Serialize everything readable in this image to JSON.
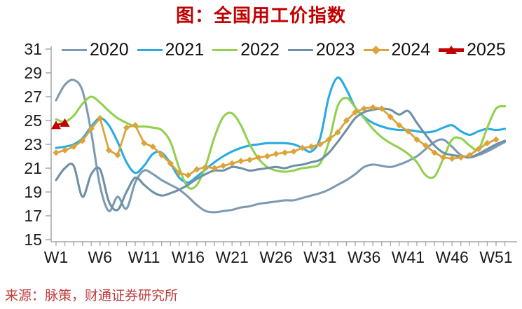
{
  "title": "图：全国用工价指数",
  "source": "来源：脉策，财通证券研究所",
  "style": {
    "title_color": "#C00000",
    "source_color": "#BE3C3C",
    "axis_color": "#A6A6A6",
    "tick_label_color": "#1a1a1a"
  },
  "chart_data": {
    "type": "line",
    "title": "图：全国用工价指数",
    "xlabel": "",
    "ylabel": "",
    "x_unit": "week-of-year",
    "x_range": [
      1,
      52
    ],
    "ylim": [
      15,
      31
    ],
    "y_ticks": [
      15,
      17,
      19,
      21,
      23,
      25,
      27,
      29,
      31
    ],
    "x_tick_weeks": [
      1,
      6,
      11,
      16,
      21,
      26,
      31,
      36,
      41,
      46,
      51
    ],
    "x_tick_labels": [
      "W1",
      "W6",
      "W11",
      "W16",
      "W21",
      "W26",
      "W31",
      "W36",
      "W41",
      "W46",
      "W51"
    ],
    "grid": false,
    "legend_position": "top",
    "series": [
      {
        "name": "2020",
        "color": "#7C9BB2",
        "marker": "none",
        "line": "smooth",
        "values": [
          26.7,
          28.0,
          28.4,
          27.5,
          24.0,
          19.5,
          17.4,
          18.6,
          17.6,
          19.8,
          20.8,
          20.5,
          20.0,
          19.6,
          19.2,
          18.6,
          17.9,
          17.4,
          17.3,
          17.4,
          17.5,
          17.7,
          17.8,
          18.0,
          18.1,
          18.2,
          18.3,
          18.3,
          18.5,
          18.7,
          18.9,
          19.2,
          19.6,
          20.0,
          20.5,
          21.1,
          21.3,
          21.2,
          21.1,
          21.3,
          21.6,
          22.0,
          22.6,
          23.2,
          23.4,
          22.8,
          22.1,
          21.9,
          22.1,
          22.4,
          22.8,
          23.2
        ]
      },
      {
        "name": "2021",
        "color": "#29ABE2",
        "marker": "none",
        "line": "smooth",
        "values": [
          22.7,
          22.8,
          23.0,
          23.5,
          24.5,
          25.2,
          24.6,
          23.2,
          21.5,
          20.6,
          21.2,
          22.2,
          22.3,
          21.4,
          20.2,
          19.8,
          20.3,
          20.9,
          21.5,
          22.0,
          22.4,
          22.7,
          22.9,
          23.0,
          23.1,
          23.1,
          23.1,
          23.0,
          22.7,
          22.4,
          23.5,
          27.0,
          28.6,
          27.6,
          26.1,
          25.3,
          24.8,
          24.5,
          24.3,
          24.2,
          24.2,
          24.1,
          24.0,
          24.1,
          24.4,
          24.6,
          24.1,
          23.8,
          24.1,
          24.3,
          24.2,
          24.3
        ]
      },
      {
        "name": "2022",
        "color": "#92D050",
        "marker": "none",
        "line": "smooth",
        "values": [
          25.1,
          24.9,
          25.4,
          26.4,
          27.0,
          26.5,
          25.8,
          25.2,
          24.8,
          24.5,
          24.5,
          24.4,
          24.2,
          23.2,
          21.0,
          19.4,
          19.6,
          21.2,
          23.6,
          25.3,
          25.6,
          24.6,
          23.0,
          21.8,
          21.1,
          20.8,
          20.7,
          20.8,
          21.0,
          21.1,
          21.4,
          23.2,
          26.2,
          26.9,
          26.1,
          25.2,
          24.3,
          23.6,
          23.1,
          22.7,
          22.2,
          21.5,
          20.4,
          20.3,
          21.8,
          23.4,
          23.5,
          22.9,
          22.6,
          24.4,
          26.0,
          26.2
        ]
      },
      {
        "name": "2023",
        "color": "#6E90A6",
        "marker": "none",
        "line": "smooth",
        "values": [
          20.0,
          21.0,
          21.2,
          18.6,
          20.5,
          20.9,
          18.2,
          17.5,
          19.0,
          20.2,
          19.6,
          19.0,
          18.7,
          18.9,
          19.2,
          19.6,
          20.1,
          20.5,
          20.8,
          20.8,
          21.1,
          21.0,
          20.8,
          20.9,
          21.0,
          21.1,
          21.0,
          21.2,
          21.3,
          21.5,
          21.7,
          22.3,
          23.2,
          24.2,
          25.2,
          25.7,
          25.9,
          26.0,
          25.9,
          25.5,
          25.8,
          24.8,
          23.8,
          22.9,
          22.3,
          22.1,
          22.0,
          21.9,
          22.2,
          22.6,
          23.0,
          23.3
        ]
      },
      {
        "name": "2024",
        "color": "#DCA33B",
        "marker": "diamond",
        "line": "straight",
        "values": [
          22.3,
          22.5,
          22.8,
          23.3,
          24.3,
          25.2,
          22.5,
          22.1,
          24.4,
          24.6,
          23.1,
          22.8,
          22.1,
          21.4,
          20.6,
          20.4,
          20.9,
          21.1,
          21.0,
          21.2,
          21.4,
          21.6,
          21.7,
          21.9,
          22.0,
          22.2,
          22.3,
          22.4,
          22.7,
          22.8,
          23.0,
          23.4,
          24.0,
          25.0,
          25.7,
          26.0,
          26.1,
          26.0,
          25.3,
          24.6,
          24.1,
          23.4,
          22.9,
          22.3,
          21.9,
          21.8,
          21.9,
          22.1,
          22.6,
          23.1,
          23.4
        ]
      },
      {
        "name": "2025",
        "color": "#C00000",
        "marker": "triangle",
        "line": "straight",
        "values": [
          24.6,
          24.8
        ]
      }
    ]
  }
}
